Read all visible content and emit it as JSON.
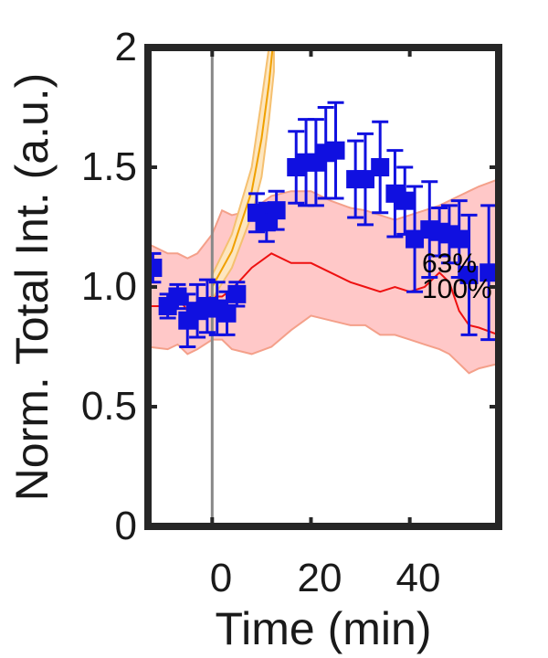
{
  "chart_data": {
    "type": "scatter",
    "title": "",
    "xlabel": "Time (min)",
    "ylabel": "Norm. Total Int. (a.u.)",
    "xlim": [
      -13,
      58
    ],
    "ylim": [
      0,
      2
    ],
    "xticks": [
      0,
      20,
      40
    ],
    "xtick_labels": [
      "0",
      "20",
      "40"
    ],
    "yticks": [
      0,
      0.5,
      1.0,
      1.5,
      2
    ],
    "ytick_labels": [
      "0",
      "0.5",
      "1.0",
      "1.5",
      "2"
    ],
    "grid": false,
    "vline_x": 0,
    "annotations": [
      "63%",
      "100%"
    ],
    "colors": {
      "points": "#1010e0",
      "errorbars": "#1010e0",
      "red_line": "#ee1111",
      "red_band_fill": "#ffc8c8",
      "red_band_edge": "#f4a08a",
      "orange_line": "#f0a000",
      "orange_band_fill": "#fde6bf",
      "orange_band_edge": "#f5c070",
      "vline": "#888888",
      "axes": "#262626"
    },
    "series": [
      {
        "marker": "square",
        "x": [
          -12,
          -9,
          -7,
          -5,
          -3,
          -1,
          1,
          3,
          5,
          9,
          11,
          13,
          17,
          19,
          21,
          23,
          25,
          29,
          31,
          34,
          37,
          39,
          41,
          44,
          46,
          48,
          50,
          52,
          56
        ],
        "y": [
          1.08,
          0.92,
          0.96,
          0.86,
          0.9,
          0.92,
          0.91,
          0.89,
          0.97,
          1.31,
          1.27,
          1.32,
          1.5,
          1.52,
          1.52,
          1.56,
          1.57,
          1.45,
          1.45,
          1.5,
          1.39,
          1.36,
          1.2,
          1.24,
          1.23,
          1.22,
          1.2,
          1.05,
          1.06
        ],
        "err": [
          0.06,
          0.05,
          0.05,
          0.11,
          0.11,
          0.11,
          0.11,
          0.09,
          0.05,
          0.08,
          0.08,
          0.08,
          0.15,
          0.18,
          0.18,
          0.19,
          0.2,
          0.16,
          0.19,
          0.19,
          0.18,
          0.14,
          0.22,
          0.2,
          0.1,
          0.12,
          0.16,
          0.25,
          0.28
        ]
      }
    ],
    "red_band": {
      "x": [
        -13,
        -9,
        -7,
        -5,
        -3,
        0,
        2,
        4,
        8,
        12,
        16,
        20,
        24,
        28,
        31,
        34,
        37,
        40,
        43,
        46,
        48,
        50,
        52,
        54,
        58
      ],
      "mean": [
        0.92,
        0.92,
        0.96,
        0.9,
        0.94,
        0.96,
        0.96,
        0.99,
        1.08,
        1.14,
        1.1,
        1.1,
        1.06,
        1.02,
        1.0,
        0.98,
        1.0,
        0.98,
        1.0,
        1.06,
        1.02,
        0.9,
        0.84,
        0.83,
        0.8
      ],
      "upper": [
        1.18,
        1.14,
        1.14,
        1.12,
        1.14,
        1.22,
        1.32,
        1.3,
        1.32,
        1.38,
        1.4,
        1.4,
        1.36,
        1.33,
        1.32,
        1.3,
        1.28,
        1.3,
        1.32,
        1.34,
        1.36,
        1.38,
        1.4,
        1.42,
        1.45
      ],
      "lower": [
        0.75,
        0.74,
        0.76,
        0.72,
        0.74,
        0.78,
        0.78,
        0.74,
        0.72,
        0.75,
        0.82,
        0.88,
        0.86,
        0.84,
        0.84,
        0.8,
        0.8,
        0.78,
        0.76,
        0.74,
        0.72,
        0.68,
        0.64,
        0.66,
        0.68
      ]
    },
    "orange_band": {
      "x": [
        0,
        4,
        8,
        10,
        11.5,
        12.5
      ],
      "mean": [
        1.0,
        1.15,
        1.4,
        1.62,
        1.85,
        2.05
      ],
      "upper": [
        1.05,
        1.22,
        1.5,
        1.78,
        2.0,
        2.2
      ],
      "lower": [
        0.95,
        1.08,
        1.3,
        1.46,
        1.7,
        1.9
      ]
    }
  }
}
